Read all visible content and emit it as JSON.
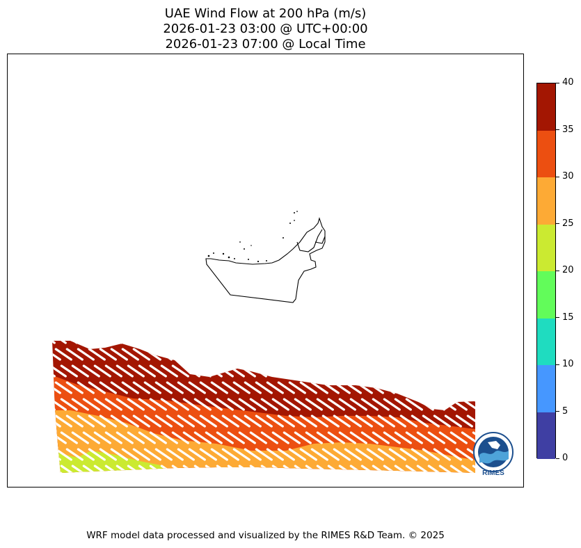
{
  "title": {
    "line1": "UAE Wind Flow at 200 hPa (m/s)",
    "line2": "2026-01-23 03:00 @ UTC+00:00",
    "line3": "2026-01-23 07:00 @ Local Time"
  },
  "colorbar": {
    "min": 0,
    "max": 40,
    "ticks": [
      "0",
      "5",
      "10",
      "15",
      "20",
      "25",
      "30",
      "35",
      "40"
    ],
    "bins": [
      {
        "from": 0,
        "to": 5,
        "color": "#3f3fa3"
      },
      {
        "from": 5,
        "to": 10,
        "color": "#4697ff"
      },
      {
        "from": 10,
        "to": 15,
        "color": "#1fdcc0"
      },
      {
        "from": 15,
        "to": 20,
        "color": "#62fc5a"
      },
      {
        "from": 20,
        "to": 25,
        "color": "#cbea31"
      },
      {
        "from": 25,
        "to": 30,
        "color": "#fdaa35"
      },
      {
        "from": 30,
        "to": 35,
        "color": "#ec4f11"
      },
      {
        "from": 35,
        "to": 40,
        "color": "#a31602"
      }
    ]
  },
  "map": {
    "region": "UAE",
    "variable": "wind speed",
    "level": "200 hPa",
    "units": "m/s",
    "wind_bands_speed": [
      22,
      27,
      32,
      37
    ],
    "wind_direction": "from northwest"
  },
  "logo": {
    "text": "RIMES",
    "color": "#1c4f8e"
  },
  "footer": "WRF model data processed and visualized by the RIMES R&D Team. © 2025"
}
